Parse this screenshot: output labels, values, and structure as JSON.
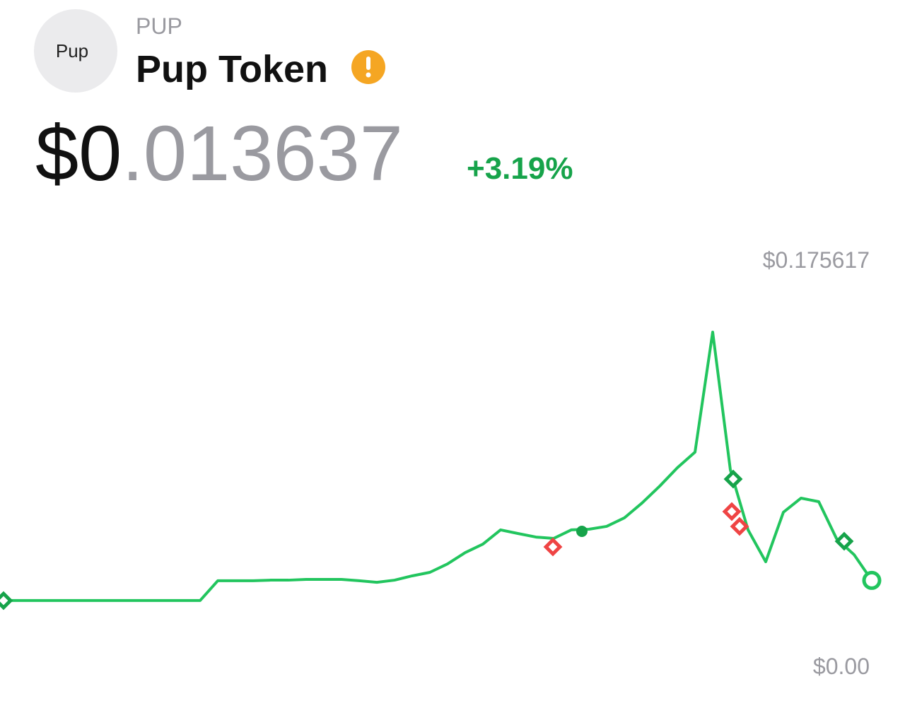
{
  "header": {
    "avatar": "Pup",
    "symbol": "PUP",
    "name": "Pup Token"
  },
  "price": {
    "whole": "$0",
    "fraction": ".013637",
    "change": "+3.19%"
  },
  "chart_data": {
    "type": "line",
    "color": "#22c55e",
    "ylim": [
      0,
      0.175617
    ],
    "yticks": [
      {
        "value": 0.175617,
        "label": "$0.175617"
      },
      {
        "value": 0,
        "label": "$0.00"
      }
    ],
    "values": [
      0.0005,
      0.0005,
      0.0005,
      0.0005,
      0.0005,
      0.0005,
      0.0005,
      0.0005,
      0.0005,
      0.0005,
      0.0005,
      0.0005,
      0.0134,
      0.0134,
      0.0134,
      0.0138,
      0.0138,
      0.0143,
      0.0143,
      0.0143,
      0.0134,
      0.0124,
      0.0138,
      0.0166,
      0.0189,
      0.0244,
      0.0318,
      0.0373,
      0.0466,
      0.0442,
      0.0419,
      0.041,
      0.0466,
      0.047,
      0.0489,
      0.0544,
      0.0641,
      0.0751,
      0.0871,
      0.0973,
      0.175617,
      0.0857,
      0.0466,
      0.0258,
      0.0581,
      0.0673,
      0.065,
      0.041,
      0.0304,
      0.013637
    ]
  }
}
